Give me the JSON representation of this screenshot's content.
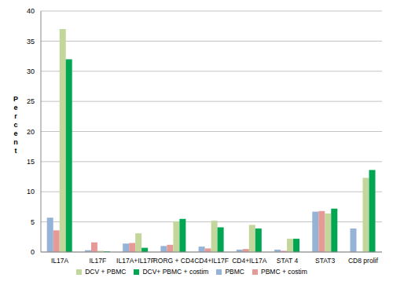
{
  "chart_data": {
    "type": "bar",
    "y_label": "Percent",
    "categories": [
      "IL17A",
      "IL17F",
      "IL17A+IL17F",
      "RORG + CD4",
      "CD4+IL17F",
      "CD4+IL17A",
      "STAT 4",
      "STAT3",
      "CD8 prolif"
    ],
    "series": [
      {
        "name": "PBMC",
        "color": "#95b3d7",
        "values": [
          5.7,
          0.3,
          1.4,
          1.0,
          0.9,
          0.4,
          0.4,
          6.7,
          3.9
        ]
      },
      {
        "name": "PBMC + costim",
        "color": "#e69a98",
        "values": [
          3.6,
          1.6,
          1.5,
          1.2,
          0.6,
          0.5,
          0.2,
          6.8,
          0
        ]
      },
      {
        "name": "DCV + PBMC",
        "color": "#c3d69b",
        "values": [
          37,
          0.2,
          3.1,
          5.1,
          5.2,
          4.5,
          2.2,
          6.4,
          12.3
        ]
      },
      {
        "name": "DCV+ PBMC + costim",
        "color": "#00a651",
        "values": [
          32,
          0.1,
          0.7,
          5.5,
          4.1,
          3.9,
          2.2,
          7.2,
          13.6
        ]
      }
    ],
    "ylim": [
      0,
      40
    ],
    "yticks": [
      0,
      5,
      10,
      15,
      20,
      25,
      30,
      35,
      40
    ],
    "grid": true,
    "legend": "bottom"
  }
}
